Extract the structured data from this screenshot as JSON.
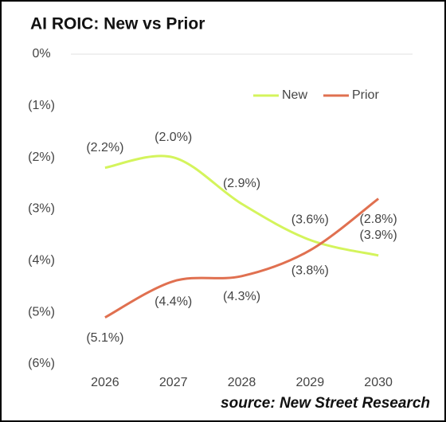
{
  "chart_data": {
    "type": "line",
    "title": "AI ROIC: New vs Prior",
    "categories": [
      "2026",
      "2027",
      "2028",
      "2029",
      "2030"
    ],
    "series": [
      {
        "name": "New",
        "color": "#d4f45c",
        "values": [
          -2.2,
          -2.0,
          -2.9,
          -3.6,
          -3.9
        ],
        "value_labels": [
          "(2.2%)",
          "(2.0%)",
          "(2.9%)",
          "(3.6%)",
          "(3.9%)"
        ]
      },
      {
        "name": "Prior",
        "color": "#e07050",
        "values": [
          -5.1,
          -4.4,
          -4.3,
          -3.8,
          -2.8
        ],
        "value_labels": [
          "(5.1%)",
          "(4.4%)",
          "(4.3%)",
          "(3.8%)",
          "(2.8%)"
        ]
      }
    ],
    "ylim": [
      -6,
      0
    ],
    "yticks": [
      {
        "value": 0,
        "label": "0%"
      },
      {
        "value": -1,
        "label": "(1%)"
      },
      {
        "value": -2,
        "label": "(2%)"
      },
      {
        "value": -3,
        "label": "(3%)"
      },
      {
        "value": -4,
        "label": "(4%)"
      },
      {
        "value": -5,
        "label": "(5%)"
      },
      {
        "value": -6,
        "label": "(6%)"
      }
    ],
    "legend": "top-right",
    "annotation": "source: New Street Research"
  }
}
